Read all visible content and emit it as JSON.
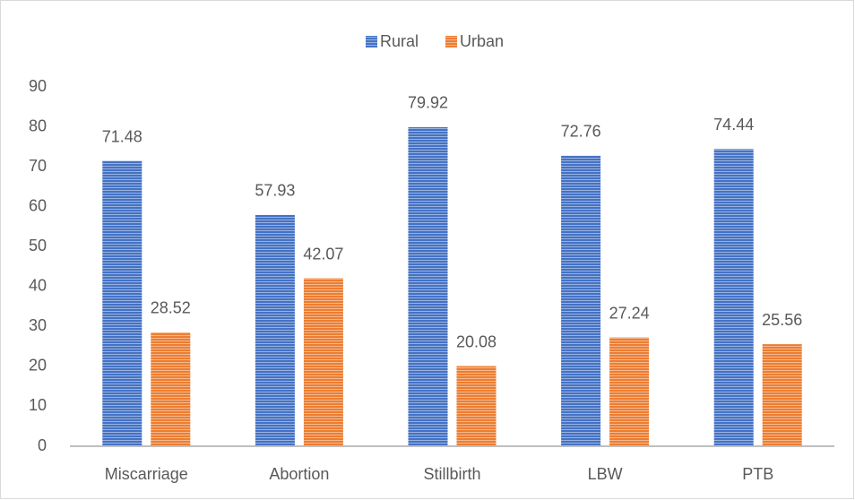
{
  "chart_data": {
    "type": "bar",
    "categories": [
      "Miscarriage",
      "Abortion",
      "Stillbirth",
      "LBW",
      "PTB"
    ],
    "series": [
      {
        "name": "Rural",
        "color": "#4472c4",
        "values": [
          71.48,
          57.93,
          79.92,
          72.76,
          74.44
        ]
      },
      {
        "name": "Urban",
        "color": "#ed7d31",
        "values": [
          28.52,
          42.07,
          20.08,
          27.24,
          25.56
        ]
      }
    ],
    "ylim": [
      0,
      90
    ],
    "yticks": [
      0,
      10,
      20,
      30,
      40,
      50,
      60,
      70,
      80,
      90
    ],
    "grid": false,
    "legend": "top"
  }
}
